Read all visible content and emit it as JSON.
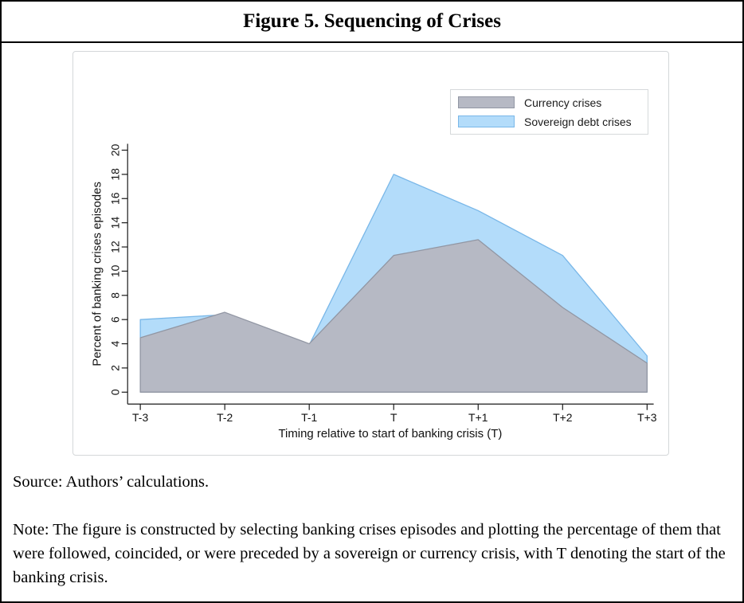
{
  "title": "Figure 5. Sequencing of Crises",
  "chart_data": {
    "type": "area",
    "x_labels": [
      "T-3",
      "T-2",
      "T-1",
      "T",
      "T+1",
      "T+2",
      "T+3"
    ],
    "series": [
      {
        "name": "Sovereign debt crises",
        "key": "sovereign",
        "values": [
          6,
          6.4,
          3.9,
          18,
          15,
          11.3,
          3
        ]
      },
      {
        "name": "Currency crises",
        "key": "currency",
        "values": [
          4.5,
          6.6,
          4,
          11.3,
          12.6,
          7,
          2.4
        ]
      }
    ],
    "xlabel": "Timing relative to start of banking crisis (T)",
    "ylabel": "Percent of banking crises episodes",
    "ylim": [
      0,
      20
    ],
    "yticks": [
      "0",
      "2",
      "4",
      "6",
      "8",
      "10",
      "12",
      "14",
      "16",
      "18",
      "20"
    ],
    "grid": false,
    "legend": {
      "position": "top-right",
      "entries": [
        {
          "label": "Currency crises",
          "key": "currency"
        },
        {
          "label": "Sovereign debt crises",
          "key": "sovereign"
        }
      ]
    },
    "colors": {
      "currency_fill": "#b6b9c4",
      "currency_edge": "#9196a3",
      "sovereign_fill": "#b3dcfa",
      "sovereign_edge": "#79b7e8"
    }
  },
  "footer": {
    "source": "Source: Authors’ calculations.",
    "note": "Note: The figure is constructed by selecting banking crises episodes and plotting the percentage of them that were followed, coincided, or were preceded by a sovereign or currency crisis, with T denoting the start of the banking crisis."
  }
}
